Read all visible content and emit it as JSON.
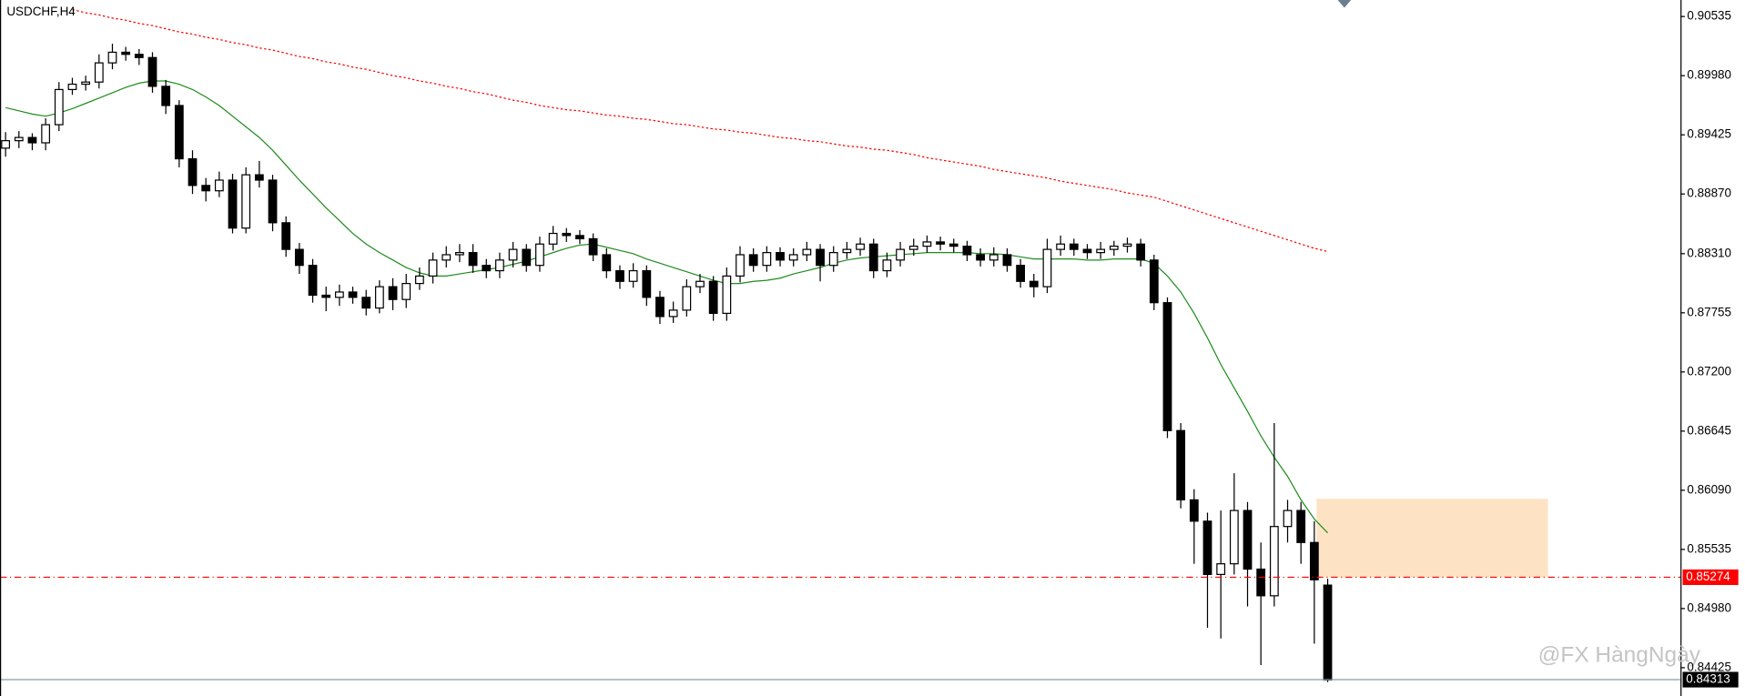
{
  "chart_data": {
    "type": "candlestick",
    "title": "USDCHF,H4",
    "watermark": "@FX HàngNgày",
    "up_color": "#ffffff",
    "down_color": "#000000",
    "ylim": [
      0.8417,
      0.9069
    ],
    "yticks": [
      0.90535,
      {
        "value": 0.8998,
        "label": "0.89980"
      },
      0.89425,
      {
        "value": 0.8887,
        "label": "0.88870"
      },
      {
        "value": 0.8831,
        "label": "0.88310"
      },
      0.87755,
      {
        "value": 0.872,
        "label": "0.87200"
      },
      0.86645,
      {
        "value": 0.8609,
        "label": "0.86090"
      },
      0.85535,
      {
        "value": 0.8498,
        "label": "0.84980"
      },
      0.84425
    ],
    "open": [
      0.893,
      0.8937,
      0.894,
      0.8935,
      0.8952,
      0.8985,
      0.899,
      0.8992,
      0.901,
      0.902,
      0.9018,
      0.9015,
      0.8988,
      0.897,
      0.892,
      0.8895,
      0.889,
      0.89,
      0.8855,
      0.8905,
      0.89,
      0.886,
      0.8835,
      0.882,
      0.8792,
      0.879,
      0.8795,
      0.879,
      0.878,
      0.88,
      0.8788,
      0.8803,
      0.881,
      0.8825,
      0.883,
      0.8832,
      0.882,
      0.8815,
      0.8825,
      0.8835,
      0.882,
      0.884,
      0.885,
      0.8848,
      0.8845,
      0.883,
      0.8815,
      0.8805,
      0.8815,
      0.879,
      0.8772,
      0.8778,
      0.88,
      0.8805,
      0.8775,
      0.881,
      0.883,
      0.882,
      0.8832,
      0.8825,
      0.883,
      0.8835,
      0.882,
      0.8832,
      0.8835,
      0.884,
      0.8815,
      0.8825,
      0.8835,
      0.8838,
      0.8842,
      0.884,
      0.8838,
      0.883,
      0.8825,
      0.883,
      0.882,
      0.8805,
      0.88,
      0.8835,
      0.884,
      0.8835,
      0.8832,
      0.8835,
      0.8838,
      0.884,
      0.8825,
      0.8785,
      0.8665,
      0.86,
      0.858,
      0.853,
      0.854,
      0.859,
      0.8535,
      0.851,
      0.8575,
      0.859,
      0.856,
      0.852
    ],
    "high": [
      0.8945,
      0.8946,
      0.8944,
      0.8958,
      0.8992,
      0.8996,
      0.8998,
      0.9018,
      0.9028,
      0.9025,
      0.9023,
      0.902,
      0.8994,
      0.8975,
      0.8928,
      0.8902,
      0.8908,
      0.8906,
      0.8912,
      0.8918,
      0.8905,
      0.8866,
      0.8841,
      0.8826,
      0.88,
      0.8802,
      0.88,
      0.8797,
      0.8806,
      0.8808,
      0.8812,
      0.8818,
      0.8832,
      0.8838,
      0.884,
      0.884,
      0.8826,
      0.8832,
      0.8842,
      0.884,
      0.8847,
      0.8857,
      0.8855,
      0.8853,
      0.885,
      0.8836,
      0.882,
      0.8822,
      0.882,
      0.8796,
      0.8786,
      0.8807,
      0.8812,
      0.881,
      0.8818,
      0.8838,
      0.8836,
      0.8838,
      0.8837,
      0.8836,
      0.8842,
      0.884,
      0.8838,
      0.8842,
      0.8846,
      0.8845,
      0.8832,
      0.8842,
      0.8845,
      0.8848,
      0.8847,
      0.8845,
      0.8843,
      0.8836,
      0.8837,
      0.8836,
      0.8826,
      0.8812,
      0.8845,
      0.8848,
      0.8845,
      0.884,
      0.8842,
      0.8843,
      0.8846,
      0.8845,
      0.883,
      0.879,
      0.8672,
      0.861,
      0.8588,
      0.859,
      0.8625,
      0.8598,
      0.856,
      0.8672,
      0.86,
      0.8598,
      0.858,
      0.8526
    ],
    "low": [
      0.8922,
      0.893,
      0.8928,
      0.8928,
      0.8946,
      0.898,
      0.8984,
      0.8986,
      0.9004,
      0.9012,
      0.9008,
      0.8982,
      0.8962,
      0.8912,
      0.8887,
      0.888,
      0.8884,
      0.885,
      0.885,
      0.8893,
      0.8852,
      0.8828,
      0.8812,
      0.8785,
      0.8777,
      0.8782,
      0.8784,
      0.8773,
      0.8775,
      0.8778,
      0.878,
      0.8797,
      0.8803,
      0.8818,
      0.8823,
      0.8813,
      0.8808,
      0.8808,
      0.8818,
      0.8814,
      0.8814,
      0.8834,
      0.8842,
      0.884,
      0.8824,
      0.8808,
      0.8798,
      0.8799,
      0.8782,
      0.8765,
      0.8766,
      0.8772,
      0.8794,
      0.8768,
      0.8768,
      0.8804,
      0.8814,
      0.8814,
      0.8819,
      0.8819,
      0.8824,
      0.8805,
      0.8814,
      0.8826,
      0.8829,
      0.8808,
      0.8809,
      0.8819,
      0.8829,
      0.8832,
      0.8834,
      0.8832,
      0.8824,
      0.8819,
      0.8819,
      0.8814,
      0.8799,
      0.879,
      0.8794,
      0.8829,
      0.8829,
      0.8826,
      0.8826,
      0.8829,
      0.8832,
      0.8819,
      0.8778,
      0.8658,
      0.8592,
      0.854,
      0.848,
      0.847,
      0.853,
      0.85,
      0.8445,
      0.85,
      0.856,
      0.854,
      0.8465,
      0.8429
    ],
    "close": [
      0.8937,
      0.894,
      0.8935,
      0.8952,
      0.8985,
      0.899,
      0.8992,
      0.901,
      0.902,
      0.9018,
      0.9015,
      0.8988,
      0.897,
      0.892,
      0.8895,
      0.889,
      0.89,
      0.8855,
      0.8905,
      0.89,
      0.886,
      0.8835,
      0.882,
      0.8792,
      0.879,
      0.8795,
      0.879,
      0.878,
      0.88,
      0.8788,
      0.8803,
      0.881,
      0.8825,
      0.883,
      0.8832,
      0.882,
      0.8815,
      0.8825,
      0.8835,
      0.882,
      0.884,
      0.885,
      0.8848,
      0.8845,
      0.883,
      0.8815,
      0.8805,
      0.8815,
      0.879,
      0.8772,
      0.8778,
      0.88,
      0.8805,
      0.8775,
      0.881,
      0.883,
      0.882,
      0.8832,
      0.8825,
      0.883,
      0.8835,
      0.882,
      0.8832,
      0.8835,
      0.884,
      0.8815,
      0.8825,
      0.8835,
      0.8838,
      0.8842,
      0.884,
      0.8838,
      0.883,
      0.8825,
      0.883,
      0.882,
      0.8805,
      0.88,
      0.8835,
      0.884,
      0.8835,
      0.8832,
      0.8835,
      0.8838,
      0.884,
      0.8825,
      0.8785,
      0.8665,
      0.86,
      0.858,
      0.853,
      0.854,
      0.859,
      0.8535,
      0.851,
      0.8575,
      0.859,
      0.856,
      0.8525,
      0.8431
    ],
    "series": [
      {
        "color": "#1e8c1e",
        "style": "solid",
        "values": [
          0.8968,
          0.8965,
          0.8962,
          0.896,
          0.8963,
          0.8967,
          0.8972,
          0.8977,
          0.8982,
          0.8987,
          0.8991,
          0.8993,
          0.8993,
          0.899,
          0.8985,
          0.8978,
          0.897,
          0.896,
          0.895,
          0.894,
          0.8928,
          0.8914,
          0.89,
          0.8887,
          0.8874,
          0.8862,
          0.885,
          0.884,
          0.8832,
          0.8825,
          0.8818,
          0.8813,
          0.881,
          0.881,
          0.8812,
          0.8814,
          0.8816,
          0.8818,
          0.8821,
          0.8824,
          0.8828,
          0.8832,
          0.8836,
          0.8839,
          0.884,
          0.8837,
          0.8834,
          0.8831,
          0.8826,
          0.8822,
          0.8818,
          0.8814,
          0.881,
          0.8806,
          0.8803,
          0.8803,
          0.8805,
          0.8806,
          0.8808,
          0.8812,
          0.8815,
          0.8818,
          0.8822,
          0.8825,
          0.8827,
          0.8828,
          0.8829,
          0.883,
          0.8831,
          0.8832,
          0.8832,
          0.8832,
          0.8832,
          0.8831,
          0.8831,
          0.883,
          0.8828,
          0.8826,
          0.8826,
          0.8826,
          0.8826,
          0.8825,
          0.8825,
          0.8826,
          0.8826,
          0.8826,
          0.8822,
          0.881,
          0.8795,
          0.8775,
          0.8752,
          0.8727,
          0.8705,
          0.8683,
          0.866,
          0.864,
          0.8622,
          0.86,
          0.8582,
          0.8569
        ]
      },
      {
        "color": "#ff0000",
        "style": "dotted",
        "values": [
          null,
          null,
          null,
          null,
          null,
          0.906,
          0.9057,
          0.9055,
          0.9052,
          0.905,
          0.9047,
          0.9045,
          0.9042,
          0.9039,
          0.9037,
          0.9034,
          0.9032,
          0.9029,
          0.9027,
          0.9024,
          0.9022,
          0.9019,
          0.9016,
          0.9014,
          0.9011,
          0.9009,
          0.9006,
          0.9004,
          0.9001,
          0.8998,
          0.8996,
          0.8993,
          0.8991,
          0.8988,
          0.8986,
          0.8983,
          0.8981,
          0.8978,
          0.8975,
          0.8973,
          0.897,
          0.8968,
          0.8966,
          0.8965,
          0.8963,
          0.8961,
          0.896,
          0.8958,
          0.8957,
          0.8955,
          0.8953,
          0.8952,
          0.895,
          0.8948,
          0.8947,
          0.8945,
          0.8944,
          0.8942,
          0.894,
          0.8939,
          0.8937,
          0.8936,
          0.8934,
          0.8932,
          0.8931,
          0.8929,
          0.8928,
          0.8926,
          0.8924,
          0.8921,
          0.8919,
          0.8917,
          0.8915,
          0.8913,
          0.891,
          0.8908,
          0.8906,
          0.8904,
          0.8902,
          0.8899,
          0.8897,
          0.8895,
          0.8893,
          0.8891,
          0.8888,
          0.8886,
          0.8884,
          0.888,
          0.8876,
          0.8872,
          0.8868,
          0.8864,
          0.886,
          0.8856,
          0.8852,
          0.8848,
          0.8844,
          0.884,
          0.8836,
          0.8833
        ]
      }
    ],
    "zone": {
      "top": 0.8601,
      "bottom": 0.85274,
      "color": "#fde3c4"
    },
    "lines": [
      {
        "value": 0.85274,
        "color": "#ff0000",
        "style": "dashdot",
        "label_color": "#ff0000"
      },
      {
        "value": 0.84313,
        "color": "#8a9aa8",
        "style": "solid",
        "label_color": "#000000"
      }
    ]
  }
}
